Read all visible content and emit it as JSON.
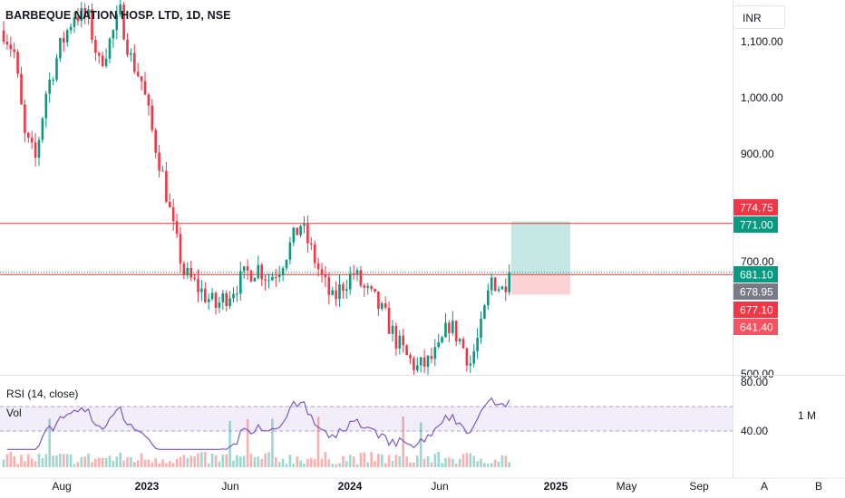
{
  "header": {
    "title": "BARBEQUE NATION HOSP. LTD, 1D, NSE",
    "currency": "INR",
    "rsi_label": "RSI (14, close)",
    "vol_label": "Vol",
    "interval_label": "1 M"
  },
  "price_axis": {
    "ticks": [
      "1,100.00",
      "1,000.00",
      "900.00",
      "700.00",
      "500.00"
    ],
    "tick_values": [
      1100,
      1000,
      900,
      700,
      500
    ]
  },
  "rsi_axis": {
    "ticks": [
      "80.00",
      "40.00"
    ],
    "tick_values": [
      80,
      40
    ],
    "band": [
      40,
      60
    ]
  },
  "time_axis": {
    "labels": [
      "Aug",
      "2023",
      "Jun",
      "2024",
      "Jun",
      "2025",
      "May",
      "Sep"
    ]
  },
  "price_labels": [
    {
      "text": "774.75",
      "value": 774.75,
      "color": "#f23645"
    },
    {
      "text": "771.00",
      "value": 771.0,
      "color": "#089981"
    },
    {
      "text": "681.10",
      "value": 681.1,
      "color": "#089981"
    },
    {
      "text": "678.95",
      "value": 678.95,
      "color": "#787b86"
    },
    {
      "text": "677.10",
      "value": 677.1,
      "color": "#f23645"
    },
    {
      "text": "641.40",
      "value": 641.4,
      "color": "#f7525f"
    }
  ],
  "bottom_buttons": [
    "A",
    "B"
  ],
  "chart_data": {
    "type": "candlestick",
    "title": "BARBEQUE NATION HOSP. LTD, 1D, NSE",
    "ylim": [
      500,
      1150
    ],
    "price_path": [
      [
        0,
        1120
      ],
      [
        3,
        1080
      ],
      [
        6,
        930
      ],
      [
        9,
        890
      ],
      [
        12,
        1010
      ],
      [
        16,
        1090
      ],
      [
        20,
        1150
      ],
      [
        24,
        1140
      ],
      [
        27,
        1060
      ],
      [
        30,
        1100
      ],
      [
        33,
        1150
      ],
      [
        36,
        1070
      ],
      [
        39,
        1030
      ],
      [
        42,
        940
      ],
      [
        45,
        860
      ],
      [
        48,
        760
      ],
      [
        51,
        680
      ],
      [
        54,
        660
      ],
      [
        57,
        640
      ],
      [
        60,
        620
      ],
      [
        63,
        640
      ],
      [
        66,
        660
      ],
      [
        69,
        680
      ],
      [
        72,
        690
      ],
      [
        75,
        670
      ],
      [
        78,
        690
      ],
      [
        81,
        730
      ],
      [
        84,
        770
      ],
      [
        87,
        720
      ],
      [
        90,
        670
      ],
      [
        93,
        630
      ],
      [
        96,
        660
      ],
      [
        99,
        680
      ],
      [
        102,
        650
      ],
      [
        105,
        630
      ],
      [
        108,
        600
      ],
      [
        111,
        560
      ],
      [
        114,
        530
      ],
      [
        117,
        510
      ],
      [
        120,
        520
      ],
      [
        123,
        540
      ],
      [
        126,
        590
      ],
      [
        129,
        560
      ],
      [
        132,
        520
      ],
      [
        135,
        580
      ],
      [
        138,
        670
      ],
      [
        141,
        650
      ],
      [
        143,
        681
      ]
    ],
    "long_position": {
      "entry": 677.1,
      "target": 774.75,
      "stop": 641.4
    },
    "horizontal_lines": [
      771.0,
      677.1
    ],
    "rsi": {
      "name": "RSI (14, close)",
      "range": [
        20,
        90
      ],
      "band": [
        40,
        60
      ]
    },
    "volume": {
      "name": "Vol"
    }
  }
}
